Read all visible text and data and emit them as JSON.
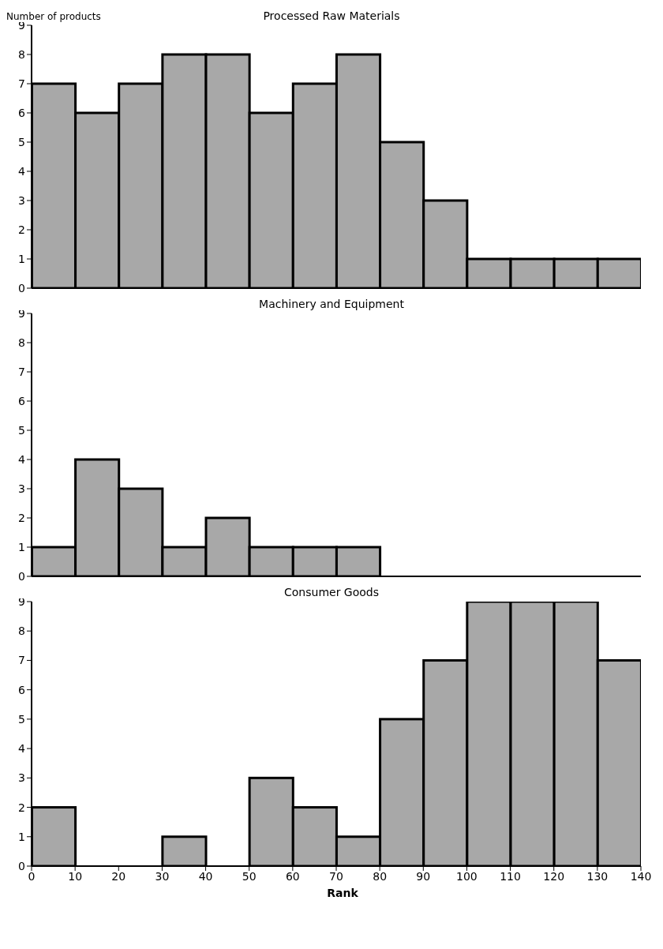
{
  "chart_data": [
    {
      "type": "histogram",
      "title": "Processed Raw Materials",
      "ylabel": "Number of products",
      "bins": [
        0,
        10,
        20,
        30,
        40,
        50,
        60,
        70,
        80,
        90,
        100,
        110,
        120,
        130,
        140
      ],
      "values": [
        7,
        6,
        7,
        8,
        8,
        6,
        7,
        8,
        5,
        3,
        1,
        1,
        1,
        1
      ],
      "color": "#a8a8a8",
      "xlim": [
        0,
        140
      ],
      "xticks": [
        0,
        10,
        20,
        30,
        40,
        50,
        60,
        70,
        80,
        90,
        100,
        110,
        120,
        130,
        140
      ],
      "ylim": [
        0,
        9
      ],
      "yticks": [
        0,
        1,
        2,
        3,
        4,
        5,
        6,
        7,
        8,
        9
      ],
      "tick_labels": "y"
    },
    {
      "type": "histogram",
      "title": "Machinery and Equipment",
      "bins": [
        0,
        10,
        20,
        30,
        40,
        50,
        60,
        70,
        80,
        90,
        100,
        110,
        120,
        130,
        140
      ],
      "values": [
        1,
        4,
        3,
        1,
        2,
        1,
        1,
        1,
        0,
        0,
        0,
        0,
        0,
        0
      ],
      "color": "#a8a8a8",
      "xlim": [
        0,
        140
      ],
      "xticks": [
        0,
        10,
        20,
        30,
        40,
        50,
        60,
        70,
        80,
        90,
        100,
        110,
        120,
        130,
        140
      ],
      "ylim": [
        0,
        9
      ],
      "yticks": [
        0,
        1,
        2,
        3,
        4,
        5,
        6,
        7,
        8,
        9
      ],
      "tick_labels": "y"
    },
    {
      "type": "histogram",
      "title": "Consumer Goods",
      "xlabel": "Rank",
      "bins": [
        0,
        10,
        20,
        30,
        40,
        50,
        60,
        70,
        80,
        90,
        100,
        110,
        120,
        130,
        140
      ],
      "values": [
        2,
        0,
        0,
        1,
        0,
        3,
        2,
        1,
        5,
        7,
        9,
        9,
        9,
        7
      ],
      "color": "#a8a8a8",
      "xlim": [
        0,
        140
      ],
      "xticks": [
        0,
        10,
        20,
        30,
        40,
        50,
        60,
        70,
        80,
        90,
        100,
        110,
        120,
        130,
        140
      ],
      "ylim": [
        0,
        9
      ],
      "yticks": [
        0,
        1,
        2,
        3,
        4,
        5,
        6,
        7,
        8,
        9
      ]
    }
  ]
}
